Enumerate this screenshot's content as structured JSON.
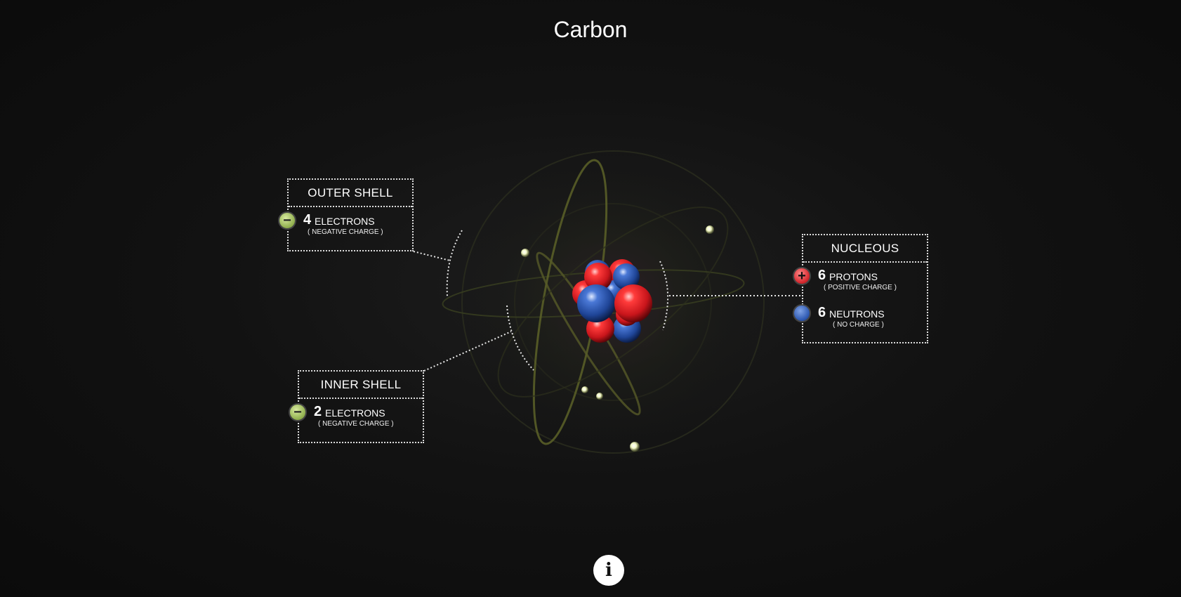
{
  "title": "Carbon",
  "outer_shell": {
    "heading": "OUTER SHELL",
    "count": "4",
    "label": "ELECTRONS",
    "charge": "( NEGATIVE CHARGE )",
    "badge": "−"
  },
  "inner_shell": {
    "heading": "INNER SHELL",
    "count": "2",
    "label": "ELECTRONS",
    "charge": "( NEGATIVE CHARGE )",
    "badge": "−"
  },
  "nucleus": {
    "heading": "NUCLEOUS",
    "protons": {
      "count": "6",
      "label": "PROTONS",
      "charge": "( POSITIVE CHARGE )",
      "badge": "+"
    },
    "neutrons": {
      "count": "6",
      "label": "NEUTRONS",
      "charge": "( NO CHARGE )"
    }
  },
  "info_button": {
    "label": "i",
    "icon": "info-icon"
  },
  "colors": {
    "proton": "#d6292f",
    "neutron": "#2f5ab2",
    "electron": "#eef5b0",
    "orbit": "#6f7330"
  }
}
